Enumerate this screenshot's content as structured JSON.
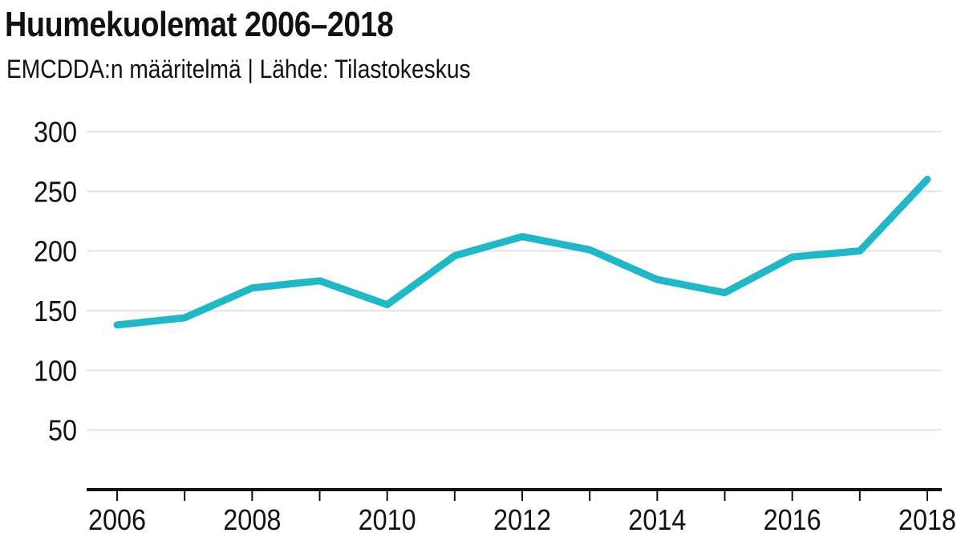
{
  "title": "Huumekuolemat 2006–2018",
  "subtitle": "EMCDDA:n määritelmä | Lähde: Tilastokeskus",
  "chart_data": {
    "type": "line",
    "title": "Huumekuolemat 2006–2018",
    "subtitle": "EMCDDA:n määritelmä | Lähde: Tilastokeskus",
    "xlabel": "",
    "ylabel": "",
    "x": [
      2006,
      2007,
      2008,
      2009,
      2010,
      2011,
      2012,
      2013,
      2014,
      2015,
      2016,
      2017,
      2018
    ],
    "series": [
      {
        "values": [
          138,
          144,
          169,
          175,
          155,
          196,
          212,
          201,
          176,
          165,
          195,
          200,
          260
        ]
      }
    ],
    "xlim": [
      2006,
      2018
    ],
    "ylim": [
      0,
      300
    ],
    "x_ticks": [
      2006,
      2007,
      2008,
      2009,
      2010,
      2011,
      2012,
      2013,
      2014,
      2015,
      2016,
      2017,
      2018
    ],
    "x_tick_labels": [
      "2006",
      "",
      "2008",
      "",
      "2010",
      "",
      "2012",
      "",
      "2014",
      "",
      "2016",
      "",
      "2018"
    ],
    "y_ticks": [
      50,
      100,
      150,
      200,
      250,
      300
    ],
    "y_tick_labels": [
      "50",
      "100",
      "150",
      "200",
      "250",
      "300"
    ],
    "grid": true,
    "legend": "none",
    "line_color": "#22b7c6",
    "grid_color": "#e3e3e3",
    "axis_color": "#111111"
  }
}
